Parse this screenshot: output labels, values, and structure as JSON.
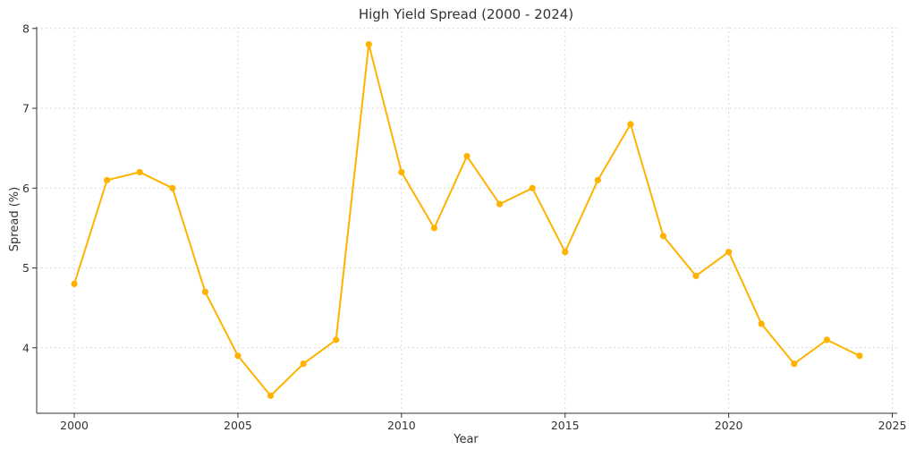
{
  "chart_data": {
    "type": "line",
    "title": "High Yield Spread (2000 - 2024)",
    "xlabel": "Year",
    "ylabel": "Spread (%)",
    "xlim": [
      1998.85,
      2025.15
    ],
    "ylim": [
      3.18,
      8.02
    ],
    "xticks": [
      2000,
      2005,
      2010,
      2015,
      2020,
      2025
    ],
    "yticks": [
      4,
      5,
      6,
      7,
      8
    ],
    "grid": true,
    "color": "#FFB300",
    "x": [
      2000,
      2001,
      2002,
      2003,
      2004,
      2005,
      2006,
      2007,
      2008,
      2009,
      2010,
      2011,
      2012,
      2013,
      2014,
      2015,
      2016,
      2017,
      2018,
      2019,
      2020,
      2021,
      2022,
      2023,
      2024
    ],
    "values": [
      4.8,
      6.1,
      6.2,
      6.0,
      4.7,
      3.9,
      3.4,
      3.8,
      4.1,
      7.8,
      6.2,
      5.5,
      6.4,
      5.8,
      6.0,
      5.2,
      6.1,
      6.8,
      5.4,
      4.9,
      5.2,
      4.3,
      3.8,
      4.1,
      3.9
    ]
  }
}
